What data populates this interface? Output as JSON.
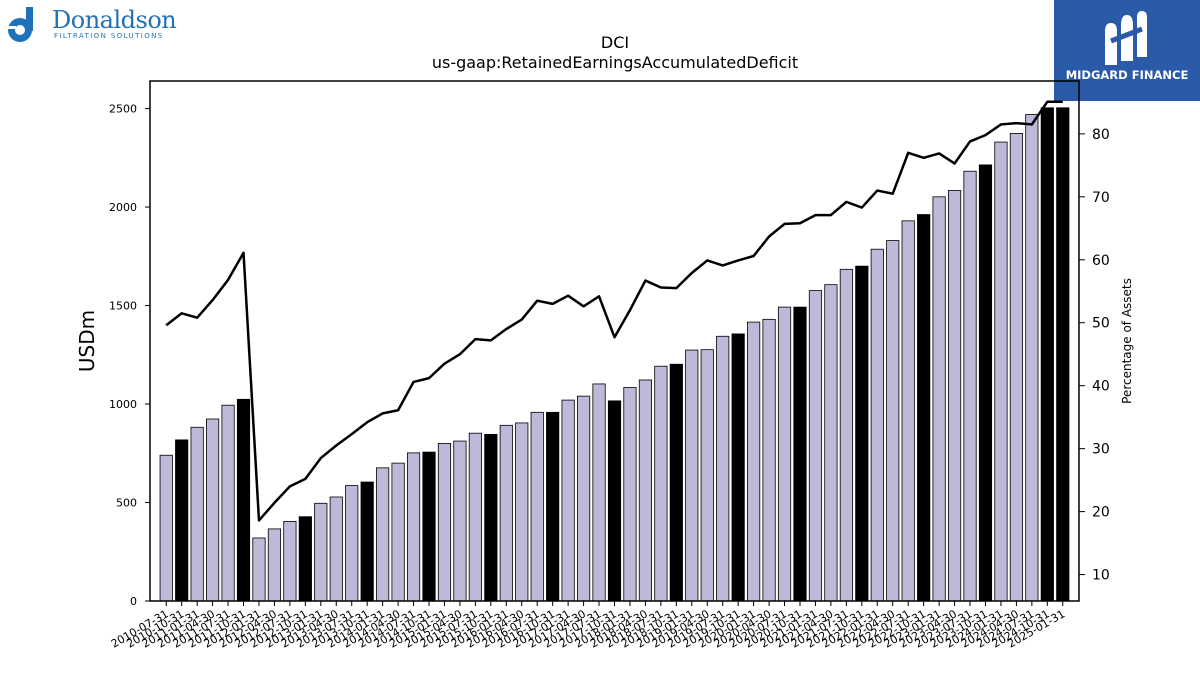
{
  "branding": {
    "company_name": "Donaldson",
    "company_tagline": "FILTRATION SOLUTIONS",
    "partner_name": "MIDGARD FINANCE",
    "logo_icon": "donaldson-d-icon",
    "partner_icon": "midgard-m-icon"
  },
  "colors": {
    "bar_fill": "#bcb9d9",
    "bar_highlight": "#000000",
    "line": "#000000",
    "brand_blue": "#1f72b8",
    "partner_bg": "#2a5aa8"
  },
  "chart_data": {
    "type": "bar",
    "title": "DCI",
    "subtitle": "us-gaap:RetainedEarningsAccumulatedDeficit",
    "ylabel": "USDm",
    "y2label": "Percentage of Assets",
    "ylim": [
      0,
      2640
    ],
    "y2lim": [
      5.8,
      88.4
    ],
    "yticks": [
      0,
      500,
      1000,
      1500,
      2000,
      2500
    ],
    "y2ticks": [
      10,
      20,
      30,
      40,
      50,
      60,
      70,
      80
    ],
    "grid": false,
    "categories": [
      "2010-07-31",
      "2010-10-31",
      "2011-01-31",
      "2011-04-30",
      "2011-07-31",
      "2011-10-31",
      "2012-01-31",
      "2012-04-30",
      "2012-07-31",
      "2012-10-31",
      "2013-01-31",
      "2013-04-30",
      "2013-07-31",
      "2013-10-31",
      "2014-01-31",
      "2014-04-30",
      "2014-07-31",
      "2014-10-31",
      "2015-01-31",
      "2015-04-30",
      "2015-07-31",
      "2015-10-31",
      "2016-01-31",
      "2016-04-30",
      "2016-07-31",
      "2016-10-31",
      "2017-01-31",
      "2017-04-30",
      "2017-07-31",
      "2017-10-31",
      "2018-01-31",
      "2018-04-30",
      "2018-07-31",
      "2018-10-31",
      "2019-01-31",
      "2019-04-30",
      "2019-07-31",
      "2019-10-31",
      "2020-01-31",
      "2020-04-30",
      "2020-07-31",
      "2020-10-31",
      "2021-01-31",
      "2021-04-30",
      "2021-07-31",
      "2021-10-31",
      "2022-01-31",
      "2022-04-30",
      "2022-07-31",
      "2022-10-31",
      "2023-01-31",
      "2023-04-30",
      "2023-07-31",
      "2023-10-31",
      "2024-01-31",
      "2024-04-30",
      "2024-07-31",
      "2024-10-31",
      "2025-01-31"
    ],
    "series": [
      {
        "type": "bar",
        "values": [
          740,
          818,
          882,
          924,
          994,
          1024,
          320,
          366,
          404,
          428,
          496,
          528,
          586,
          604,
          676,
          700,
          752,
          756,
          800,
          812,
          852,
          846,
          892,
          904,
          958,
          958,
          1020,
          1040,
          1102,
          1016,
          1084,
          1122,
          1192,
          1202,
          1274,
          1276,
          1344,
          1356,
          1416,
          1430,
          1492,
          1492,
          1576,
          1606,
          1684,
          1700,
          1786,
          1830,
          1930,
          1962,
          2052,
          2084,
          2182,
          2214,
          2330,
          2374,
          2470,
          2504,
          2504
        ],
        "highlight": [
          false,
          true,
          false,
          false,
          false,
          true,
          false,
          false,
          false,
          true,
          false,
          false,
          false,
          true,
          false,
          false,
          false,
          true,
          false,
          false,
          false,
          true,
          false,
          false,
          false,
          true,
          false,
          false,
          false,
          true,
          false,
          false,
          false,
          true,
          false,
          false,
          false,
          true,
          false,
          false,
          false,
          true,
          false,
          false,
          false,
          true,
          false,
          false,
          false,
          true,
          false,
          false,
          false,
          true,
          false,
          false,
          false,
          true,
          true
        ]
      },
      {
        "type": "line",
        "axis": "right",
        "values": [
          49.6,
          51.5,
          50.8,
          53.6,
          56.8,
          61.1,
          18.6,
          21.4,
          24.0,
          25.2,
          28.5,
          30.5,
          32.3,
          34.2,
          35.6,
          36.1,
          40.6,
          41.2,
          43.5,
          45.0,
          47.4,
          47.2,
          49.0,
          50.5,
          53.5,
          53.0,
          54.3,
          52.6,
          54.2,
          47.7,
          52.0,
          56.7,
          55.6,
          55.5,
          57.9,
          59.9,
          59.1,
          59.9,
          60.6,
          63.7,
          65.7,
          65.8,
          67.1,
          67.1,
          69.2,
          68.3,
          71.0,
          70.5,
          77.0,
          76.2,
          76.9,
          75.3,
          78.8,
          79.8,
          81.5,
          81.7,
          81.5,
          85.1,
          85.1
        ]
      }
    ],
    "legend": "none"
  }
}
